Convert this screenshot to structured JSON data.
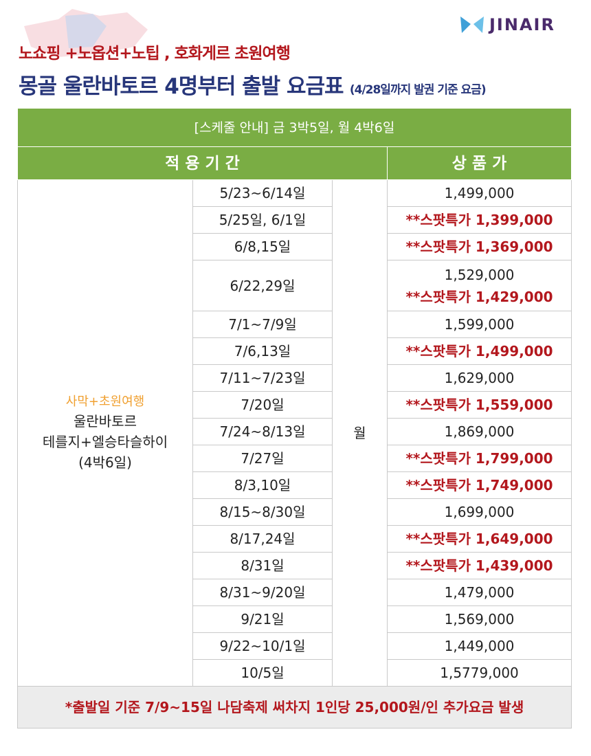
{
  "header": {
    "subtitle": "노쇼핑 +노옵션+노팁 ,  호화게르 초원여행",
    "title": "몽골 울란바토르 4명부터 출발 요금표",
    "note": "(4/28일까지 발권 기준 요금)",
    "logo": "JINAIR"
  },
  "table": {
    "schedule": "[스케줄 안내] 금 3박5일, 월 4박6일",
    "columns": [
      "적 용 기 간",
      "상 품 가"
    ],
    "product": {
      "tag": "사막+초원여행",
      "lines": [
        "울란바토르",
        "테를지+엘승타슬하이",
        "(4박6일)"
      ]
    },
    "day": "월",
    "rows": [
      {
        "date": "5/23~6/14일",
        "prices": [
          "1,499,000"
        ]
      },
      {
        "date": "5/25일, 6/1일",
        "prices": [
          "**스팟특가 1,399,000"
        ]
      },
      {
        "date": "6/8,15일",
        "prices": [
          "**스팟특가 1,369,000"
        ]
      },
      {
        "date": "6/22,29일",
        "prices": [
          "1,529,000",
          "**스팟특가 1,429,000"
        ]
      },
      {
        "date": "7/1~7/9일",
        "prices": [
          "1,599,000"
        ]
      },
      {
        "date": "7/6,13일",
        "prices": [
          "**스팟특가 1,499,000"
        ]
      },
      {
        "date": "7/11~7/23일",
        "prices": [
          "1,629,000"
        ]
      },
      {
        "date": "7/20일",
        "prices": [
          "**스팟특가 1,559,000"
        ]
      },
      {
        "date": "7/24~8/13일",
        "prices": [
          "1,869,000"
        ]
      },
      {
        "date": "7/27일",
        "prices": [
          "**스팟특가 1,799,000"
        ]
      },
      {
        "date": "8/3,10일",
        "prices": [
          "**스팟특가 1,749,000"
        ]
      },
      {
        "date": "8/15~8/30일",
        "prices": [
          "1,699,000"
        ]
      },
      {
        "date": "8/17,24일",
        "prices": [
          "**스팟특가 1,649,000"
        ]
      },
      {
        "date": "8/31일",
        "prices": [
          "**스팟특가 1,439,000"
        ]
      },
      {
        "date": "8/31~9/20일",
        "prices": [
          "1,479,000"
        ]
      },
      {
        "date": "9/21일",
        "prices": [
          "1,569,000"
        ]
      },
      {
        "date": "9/22~10/1일",
        "prices": [
          "1,449,000"
        ]
      },
      {
        "date": "10/5일",
        "prices": [
          "1,5779,000"
        ]
      }
    ],
    "footer": "*출발일 기준 7/9~15일 나담축제 써차지 1인당 25,000원/인 추가요금 발생"
  }
}
